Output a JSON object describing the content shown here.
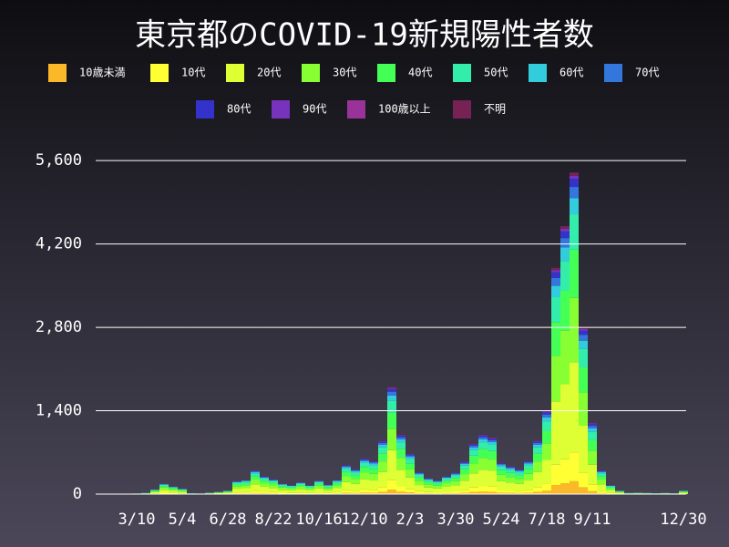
{
  "chart_data": {
    "type": "stacked_bar",
    "title": "東京都のCOVID-19新規陽性者数",
    "categories": [
      null,
      null,
      null,
      null,
      "3/10",
      null,
      null,
      null,
      null,
      "5/4",
      null,
      null,
      null,
      null,
      "6/28",
      null,
      null,
      null,
      null,
      "8/22",
      null,
      null,
      null,
      null,
      "10/16",
      null,
      null,
      null,
      null,
      "12/10",
      null,
      null,
      null,
      null,
      "2/3",
      null,
      null,
      null,
      null,
      "3/30",
      null,
      null,
      null,
      null,
      "5/24",
      null,
      null,
      null,
      null,
      "7/18",
      null,
      null,
      null,
      null,
      "9/11",
      null,
      null,
      null,
      null,
      null,
      null,
      null,
      null,
      null,
      "12/30"
    ],
    "ylim": [
      0,
      6000
    ],
    "yticks": [
      0,
      {
        "value": 1400,
        "label": "1,400"
      },
      {
        "value": 2800,
        "label": "2,800"
      },
      {
        "value": 4200,
        "label": "4,200"
      },
      {
        "value": 5600,
        "label": "5,600"
      }
    ],
    "grid": true,
    "series": [
      {
        "name": "10歳未満",
        "color": "#fbb829",
        "values": [
          0,
          0,
          0,
          0,
          0,
          1,
          3,
          7,
          5,
          4,
          1,
          0,
          1,
          2,
          2,
          9,
          10,
          16,
          12,
          10,
          7,
          6,
          8,
          6,
          9,
          6,
          10,
          20,
          17,
          24,
          22,
          36,
          72,
          40,
          27,
          15,
          11,
          9,
          12,
          14,
          22,
          34,
          40,
          38,
          21,
          19,
          17,
          22,
          36,
          56,
          152,
          180,
          216,
          112,
          48,
          16,
          6,
          2,
          1,
          1,
          1,
          1,
          1,
          1,
          2
        ]
      },
      {
        "name": "10代",
        "color": "#ffff33",
        "values": [
          0,
          0,
          0,
          0,
          1,
          2,
          7,
          16,
          12,
          8,
          1,
          1,
          2,
          4,
          5,
          20,
          22,
          36,
          27,
          22,
          16,
          14,
          18,
          14,
          21,
          14,
          22,
          44,
          38,
          54,
          50,
          81,
          162,
          90,
          61,
          33,
          24,
          21,
          27,
          32,
          50,
          76,
          90,
          86,
          48,
          42,
          38,
          50,
          81,
          126,
          342,
          405,
          486,
          252,
          108,
          36,
          14,
          5,
          2,
          2,
          2,
          1,
          2,
          1,
          5
        ]
      },
      {
        "name": "20代",
        "color": "#ddff33",
        "values": [
          0,
          0,
          1,
          1,
          3,
          6,
          22,
          50,
          36,
          25,
          4,
          3,
          7,
          11,
          17,
          62,
          67,
          112,
          84,
          70,
          50,
          42,
          56,
          42,
          64,
          45,
          67,
          137,
          118,
          168,
          157,
          252,
          504,
          280,
          190,
          104,
          76,
          64,
          84,
          101,
          154,
          238,
          280,
          266,
          148,
          132,
          118,
          157,
          252,
          392,
          1064,
          1260,
          1512,
          784,
          336,
          112,
          42,
          17,
          6,
          7,
          6,
          4,
          6,
          4,
          17
        ]
      },
      {
        "name": "30代",
        "color": "#88ff33",
        "values": [
          0,
          0,
          1,
          1,
          2,
          4,
          16,
          36,
          26,
          18,
          3,
          2,
          5,
          8,
          12,
          44,
          48,
          80,
          60,
          50,
          36,
          30,
          40,
          30,
          46,
          32,
          48,
          98,
          84,
          120,
          112,
          180,
          360,
          200,
          136,
          74,
          54,
          46,
          60,
          72,
          110,
          170,
          200,
          190,
          106,
          94,
          84,
          112,
          180,
          280,
          760,
          900,
          1080,
          560,
          240,
          80,
          30,
          12,
          4,
          5,
          4,
          3,
          4,
          3,
          12
        ]
      },
      {
        "name": "40代",
        "color": "#44ff55",
        "values": [
          0,
          1,
          0,
          1,
          2,
          3,
          12,
          27,
          20,
          14,
          2,
          2,
          4,
          6,
          9,
          33,
          36,
          60,
          45,
          38,
          27,
          22,
          30,
          22,
          35,
          24,
          36,
          74,
          63,
          90,
          84,
          135,
          270,
          150,
          102,
          56,
          40,
          35,
          45,
          54,
          82,
          128,
          150,
          142,
          80,
          70,
          63,
          84,
          135,
          210,
          570,
          675,
          810,
          420,
          180,
          60,
          22,
          9,
          3,
          4,
          3,
          2,
          3,
          2,
          9
        ]
      },
      {
        "name": "50代",
        "color": "#33eeaa",
        "values": [
          0,
          0,
          1,
          1,
          1,
          2,
          9,
          20,
          14,
          10,
          2,
          1,
          3,
          4,
          7,
          24,
          26,
          44,
          33,
          28,
          20,
          16,
          22,
          16,
          25,
          18,
          26,
          54,
          46,
          66,
          62,
          99,
          198,
          110,
          75,
          41,
          30,
          25,
          33,
          40,
          60,
          94,
          110,
          104,
          58,
          52,
          46,
          62,
          99,
          154,
          418,
          495,
          594,
          308,
          132,
          44,
          16,
          7,
          2,
          3,
          2,
          2,
          2,
          2,
          7
        ]
      },
      {
        "name": "60代",
        "color": "#33ccdd",
        "values": [
          0,
          0,
          0,
          1,
          1,
          1,
          4,
          9,
          7,
          5,
          1,
          1,
          1,
          2,
          3,
          11,
          12,
          20,
          15,
          12,
          9,
          8,
          10,
          8,
          12,
          8,
          12,
          25,
          21,
          30,
          28,
          45,
          90,
          50,
          34,
          18,
          14,
          12,
          15,
          18,
          28,
          42,
          50,
          48,
          26,
          24,
          21,
          28,
          45,
          70,
          190,
          225,
          270,
          140,
          60,
          20,
          8,
          3,
          1,
          1,
          1,
          1,
          1,
          1,
          3
        ]
      },
      {
        "name": "70代",
        "color": "#3377dd",
        "values": [
          0,
          0,
          0,
          0,
          0,
          1,
          3,
          6,
          5,
          3,
          1,
          0,
          1,
          1,
          2,
          8,
          8,
          14,
          11,
          9,
          6,
          5,
          7,
          5,
          8,
          6,
          8,
          17,
          15,
          21,
          20,
          32,
          63,
          35,
          24,
          13,
          9,
          8,
          11,
          13,
          19,
          30,
          35,
          33,
          19,
          16,
          15,
          20,
          32,
          49,
          133,
          158,
          189,
          98,
          42,
          14,
          5,
          2,
          1,
          1,
          1,
          1,
          1,
          1,
          2
        ]
      },
      {
        "name": "80代",
        "color": "#3333cc",
        "values": [
          0,
          0,
          0,
          0,
          0,
          0,
          2,
          5,
          3,
          2,
          0,
          0,
          1,
          1,
          2,
          5,
          6,
          10,
          8,
          6,
          5,
          4,
          5,
          4,
          6,
          4,
          6,
          12,
          10,
          15,
          14,
          22,
          45,
          25,
          17,
          9,
          7,
          6,
          8,
          9,
          14,
          21,
          25,
          24,
          13,
          12,
          10,
          14,
          22,
          35,
          95,
          112,
          135,
          70,
          30,
          10,
          4,
          2,
          0,
          1,
          0,
          0,
          0,
          0,
          2
        ]
      },
      {
        "name": "90代",
        "color": "#7733bb",
        "values": [
          0,
          0,
          0,
          0,
          0,
          0,
          1,
          2,
          1,
          1,
          0,
          0,
          0,
          0,
          1,
          2,
          2,
          4,
          3,
          2,
          2,
          2,
          2,
          2,
          2,
          2,
          2,
          5,
          4,
          6,
          6,
          9,
          18,
          10,
          7,
          4,
          3,
          2,
          3,
          4,
          6,
          8,
          10,
          10,
          5,
          5,
          4,
          6,
          9,
          14,
          38,
          45,
          54,
          28,
          12,
          4,
          2,
          1,
          0,
          0,
          0,
          0,
          0,
          0,
          1
        ]
      },
      {
        "name": "100歳以上",
        "color": "#993399",
        "values": [
          0,
          0,
          0,
          0,
          0,
          0,
          0,
          0,
          0,
          0,
          0,
          0,
          0,
          0,
          0,
          0,
          0,
          0,
          0,
          0,
          0,
          0,
          0,
          0,
          0,
          0,
          0,
          0,
          0,
          0,
          0,
          0,
          1,
          0,
          0,
          0,
          0,
          0,
          0,
          0,
          0,
          0,
          0,
          0,
          0,
          0,
          0,
          0,
          0,
          0,
          0,
          0,
          1,
          0,
          0,
          0,
          0,
          0,
          0,
          0,
          0,
          0,
          0,
          0,
          0
        ]
      },
      {
        "name": "不明",
        "color": "#772255",
        "values": [
          0,
          0,
          0,
          0,
          0,
          0,
          1,
          2,
          1,
          0,
          0,
          0,
          0,
          1,
          0,
          2,
          3,
          4,
          2,
          3,
          2,
          1,
          2,
          1,
          2,
          1,
          3,
          4,
          4,
          6,
          5,
          9,
          17,
          10,
          7,
          3,
          2,
          2,
          2,
          3,
          5,
          9,
          10,
          9,
          6,
          4,
          4,
          5,
          9,
          14,
          38,
          45,
          53,
          28,
          12,
          4,
          1,
          0,
          0,
          0,
          0,
          0,
          0,
          0,
          0
        ]
      }
    ]
  }
}
